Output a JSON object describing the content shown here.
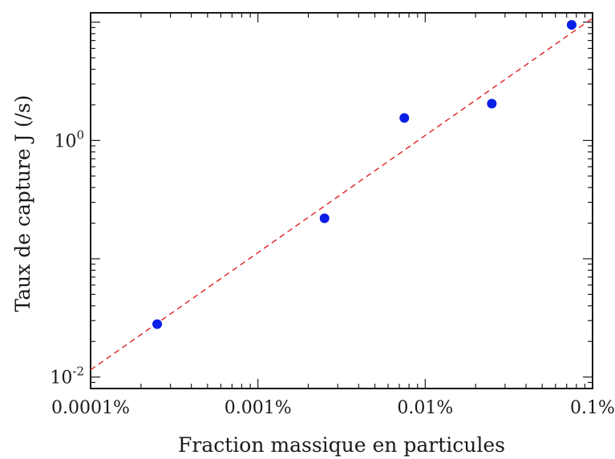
{
  "chart_data": {
    "type": "scatter",
    "title": "",
    "xlabel": "Fraction massique en particules",
    "ylabel": "Taux de capture J (/s)",
    "x_scale": "log",
    "y_scale": "log",
    "xlim": [
      0.0001,
      0.1
    ],
    "ylim": [
      0.008,
      12
    ],
    "x_ticks": [
      {
        "value": 0.0001,
        "label": "0.0001%"
      },
      {
        "value": 0.001,
        "label": "0.001%"
      },
      {
        "value": 0.01,
        "label": "0.01%"
      },
      {
        "value": 0.1,
        "label": "0.1%"
      }
    ],
    "y_ticks": [
      {
        "value": 0.01,
        "base": "10",
        "exp": "-2"
      },
      {
        "value": 1,
        "base": "10",
        "exp": "0"
      }
    ],
    "grid": false,
    "series": [
      {
        "color": "#0a1ee8",
        "marker": "circle",
        "x": [
          0.00025,
          0.0025,
          0.0075,
          0.025,
          0.075
        ],
        "y": [
          0.028,
          0.22,
          1.55,
          2.05,
          9.5
        ]
      }
    ],
    "fit_line": {
      "color": "#e02020",
      "style": "dashed",
      "x": [
        0.0001,
        0.1
      ],
      "y": [
        0.0115,
        10.8
      ]
    }
  }
}
